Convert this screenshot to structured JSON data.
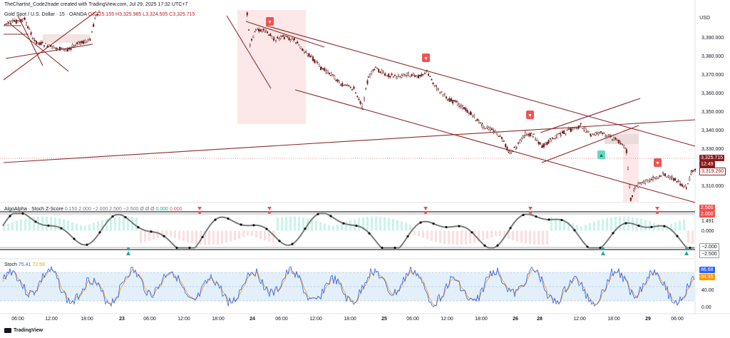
{
  "header": {
    "credit": "TheChartist_Code2trade created with TradingView.com, Jul 29, 2025 17:32 UTC+7"
  },
  "symbol": {
    "name": "Gold Spot / U.S. Dollar · 15 · OANDA",
    "o": "O3,325.155",
    "h": "H3,325.985",
    "l": "L3,324.505",
    "c": "C3,325.715"
  },
  "price_axis": {
    "currency": "USD",
    "labels": [
      "3,390.000",
      "3,380.000",
      "3,370.000",
      "3,360.000",
      "3,350.000",
      "3,340.000",
      "3,330.000",
      "3,310.000"
    ],
    "last_price": "3,325.715",
    "countdown": "12:49",
    "ref_price": "3,319.260"
  },
  "indicator1": {
    "name": "AlgoAlpha · Stoch Z-Score",
    "params": "0.150  2.000  −2.000  2.500  −2.500  Ø  Ø  Ø",
    "value1": "0.000",
    "value2": "0.000",
    "axis_labels": [
      "2.500",
      "2.000",
      "1.491",
      "0.000",
      "−2.000",
      "−2.500"
    ]
  },
  "indicator2": {
    "name": "Stoch",
    "k": "75.41",
    "d": "72.59",
    "axis_labels": [
      "86.68",
      "84.95",
      "40.00",
      "0.00"
    ]
  },
  "time_axis": [
    "06:00",
    "12:00",
    "18:00",
    "23",
    "06:00",
    "12:00",
    "18:00",
    "24",
    "06:00",
    "12:00",
    "18:00",
    "25",
    "06:00",
    "12:00",
    "18:00",
    "26",
    "28",
    "12:00",
    "18:00",
    "29",
    "06:00"
  ],
  "footer": {
    "brand": "TradingView"
  },
  "colors": {
    "up": "#8b1a1a",
    "down": "#8b1a1a",
    "trend": "#8e2b2b",
    "bear_marker": "#ef5350",
    "bull_marker": "#26a69a",
    "stoch_k": "#2962ff",
    "stoch_d": "#ff9800"
  }
}
